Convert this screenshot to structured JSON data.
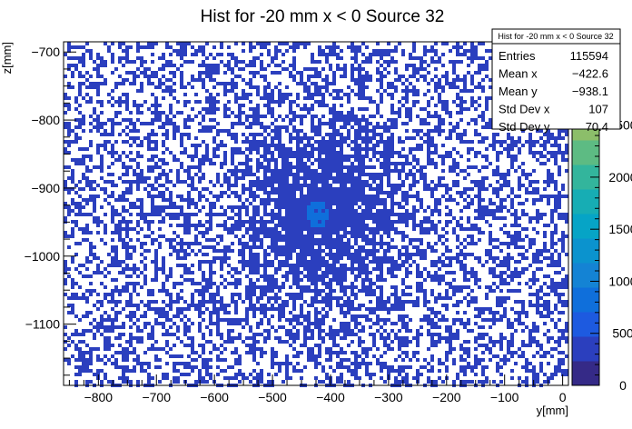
{
  "chart_data": {
    "type": "heatmap",
    "title": "Hist for -20 mm x < 0 Source 32",
    "xlabel": "y[mm]",
    "ylabel": "z[mm]",
    "xlim": [
      -860,
      10
    ],
    "ylim": [
      -1190,
      -685
    ],
    "x_ticks": [
      -800,
      -700,
      -600,
      -500,
      -400,
      -300,
      -200,
      -100,
      0
    ],
    "y_ticks": [
      -700,
      -800,
      -900,
      -1000,
      -1100
    ],
    "colorbar": {
      "range": [
        0,
        3300
      ],
      "tick_values": [
        0,
        500,
        1000,
        1500,
        2000,
        2500,
        3000
      ],
      "tick_labels": [
        "0",
        "500",
        "1000",
        "1500",
        "2000",
        "2500",
        ""
      ],
      "colors": [
        "#352a87",
        "#2b3fbe",
        "#1d5ae0",
        "#0f6fdb",
        "#1483d4",
        "#0b93ce",
        "#06a4c6",
        "#17adb4",
        "#33b59c",
        "#5dbb83",
        "#8cbe6a",
        "#b4bd5a",
        "#d4bb4c",
        "#e8bf3e"
      ]
    },
    "distribution": {
      "center_x": -422,
      "center_y": -938,
      "sigma_x": 107,
      "sigma_y": 70
    },
    "stats_box": {
      "title": "Hist for -20 mm x < 0 Source 32",
      "rows": [
        {
          "label": "Entries",
          "value": "115594"
        },
        {
          "label": "Mean x",
          "value": "−422.6"
        },
        {
          "label": "Mean y",
          "value": "−938.1"
        },
        {
          "label": "Std Dev x",
          "value": "107"
        },
        {
          "label": "Std Dev y",
          "value": "70.4"
        }
      ]
    }
  }
}
